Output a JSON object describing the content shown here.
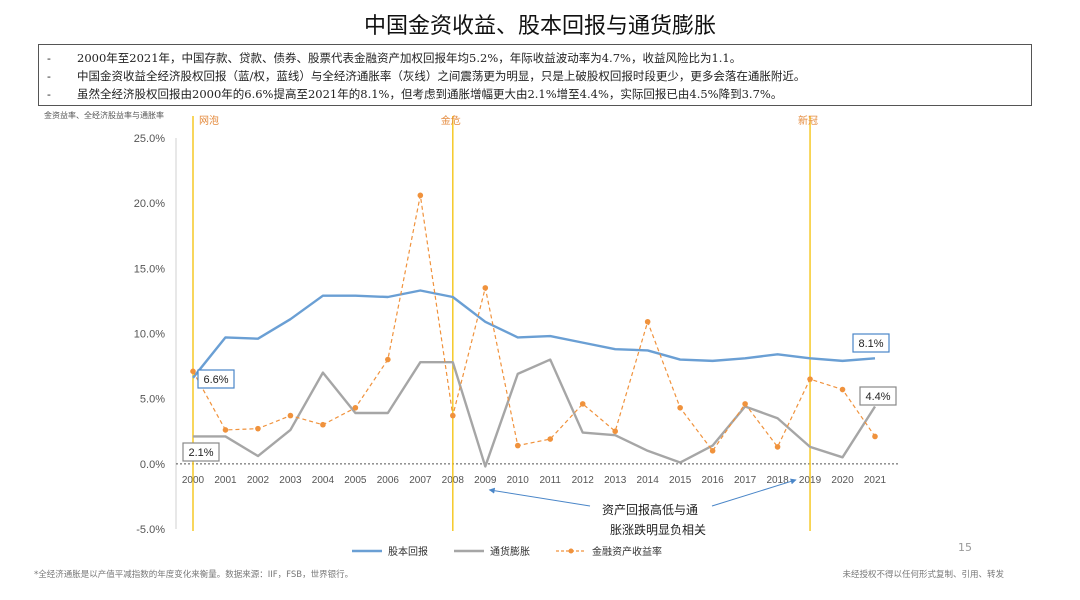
{
  "title": "中国金资收益、股本回报与通货膨胀",
  "notes": [
    "2000年至2021年，中国存款、贷款、债券、股票代表金融资产加权回报年均5.2%，年际收益波动率为4.7%，收益风险比为1.1。",
    "中国金资收益全经济股权回报（蓝/权，蓝线）与全经济通胀率（灰线）之间震荡更为明显，只是上破股权回报时段更少，更多会落在通胀附近。",
    "虽然全经济股权回报由2000年的6.6%提高至2021年的8.1%，但考虑到通胀增幅更大由2.1%增至4.4%，实际回报已由4.5%降到3.7%。"
  ],
  "note_bullet": "-",
  "ylabel_caption": "金资益率、全经济股益率与通胀率",
  "footnote": "*全经济通胀是以产值平减指数的年度变化来衡量。数据来源：IIF，FSB，世界银行。",
  "copyright": "未经授权不得以任何形式复制、引用、转发",
  "page_number": "15",
  "chart_data": {
    "type": "line",
    "x": [
      "2000",
      "2001",
      "2002",
      "2003",
      "2004",
      "2005",
      "2006",
      "2007",
      "2008",
      "2009",
      "2010",
      "2011",
      "2012",
      "2013",
      "2014",
      "2015",
      "2016",
      "2017",
      "2018",
      "2019",
      "2020",
      "2021"
    ],
    "ylim": [
      -5,
      25
    ],
    "yticks": [
      "-5.0%",
      "0.0%",
      "5.0%",
      "10.0%",
      "15.0%",
      "20.0%",
      "25.0%"
    ],
    "ytick_values": [
      -5,
      0,
      5,
      10,
      15,
      20,
      25
    ],
    "grid": false,
    "legend_position": "bottom",
    "series": [
      {
        "name": "股本回报",
        "style": "solid",
        "color": "#6a9fd4",
        "values": [
          6.6,
          9.7,
          9.6,
          11.1,
          12.9,
          12.9,
          12.8,
          13.3,
          12.8,
          10.9,
          9.7,
          9.8,
          9.3,
          8.8,
          8.7,
          8.0,
          7.9,
          8.1,
          8.4,
          8.1,
          7.9,
          8.1
        ]
      },
      {
        "name": "通货膨胀",
        "style": "solid",
        "color": "#a6a6a6",
        "values": [
          2.1,
          2.1,
          0.6,
          2.6,
          7.0,
          3.9,
          3.9,
          7.8,
          7.8,
          -0.2,
          6.9,
          8.0,
          2.4,
          2.2,
          1.0,
          0.1,
          1.4,
          4.4,
          3.5,
          1.3,
          0.5,
          4.4
        ]
      },
      {
        "name": "金融资产收益率",
        "style": "dashed",
        "color": "#f0923c",
        "values": [
          7.1,
          2.6,
          2.7,
          3.7,
          3.0,
          4.3,
          8.0,
          20.6,
          3.7,
          13.5,
          1.4,
          1.9,
          4.6,
          2.5,
          10.9,
          4.3,
          1.0,
          4.6,
          1.3,
          6.5,
          5.7,
          2.1
        ]
      }
    ],
    "events": [
      {
        "label": "网泡",
        "x": "2000"
      },
      {
        "label": "金危",
        "x": "2008"
      },
      {
        "label": "新冠",
        "x": "2019"
      }
    ],
    "callouts": [
      {
        "label": "6.6%",
        "series": "股本回报",
        "x": "2000",
        "color": "#4a86c8"
      },
      {
        "label": "2.1%",
        "series": "通货膨胀",
        "x": "2000",
        "color": "#888888"
      },
      {
        "label": "8.1%",
        "series": "股本回报",
        "x": "2021",
        "color": "#4a86c8"
      },
      {
        "label": "4.4%",
        "series": "通货膨胀",
        "x": "2021",
        "color": "#888888"
      }
    ],
    "annotation": {
      "lines": [
        "资产回报高低与通",
        "胀涨跌明显负相关"
      ],
      "arrow_targets": [
        "2009",
        "2019"
      ]
    }
  }
}
